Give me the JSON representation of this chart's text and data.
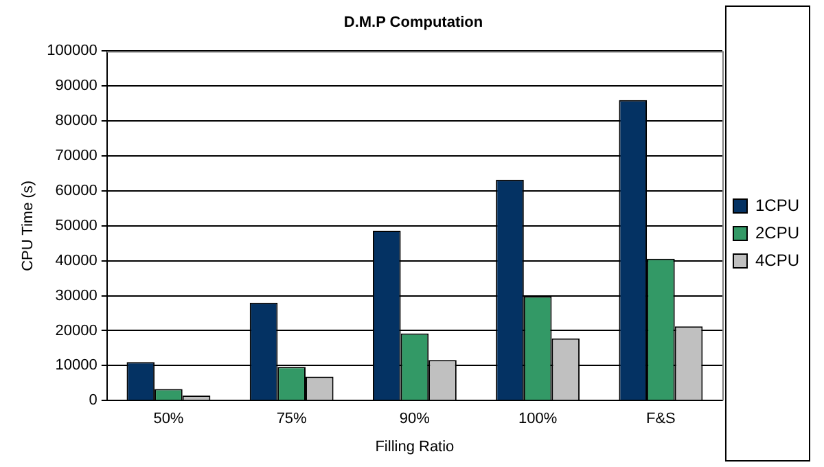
{
  "chart_data": {
    "type": "bar",
    "title": "D.M.P Computation",
    "xlabel": "Filling Ratio",
    "ylabel": "CPU Time (s)",
    "categories": [
      "50%",
      "75%",
      "90%",
      "100%",
      "F&S"
    ],
    "series": [
      {
        "name": "1CPU",
        "color": "#043263",
        "values": [
          11000,
          28000,
          48600,
          63200,
          86000
        ]
      },
      {
        "name": "2CPU",
        "color": "#339966",
        "values": [
          3300,
          9600,
          19200,
          29800,
          40600
        ]
      },
      {
        "name": "4CPU",
        "color": "#c0c0c0",
        "values": [
          1400,
          6800,
          11600,
          17800,
          21200
        ]
      }
    ],
    "ylim": [
      0,
      100000
    ],
    "yticks": [
      0,
      10000,
      20000,
      30000,
      40000,
      50000,
      60000,
      70000,
      80000,
      90000,
      100000
    ],
    "grid": "y",
    "legend": "right"
  }
}
